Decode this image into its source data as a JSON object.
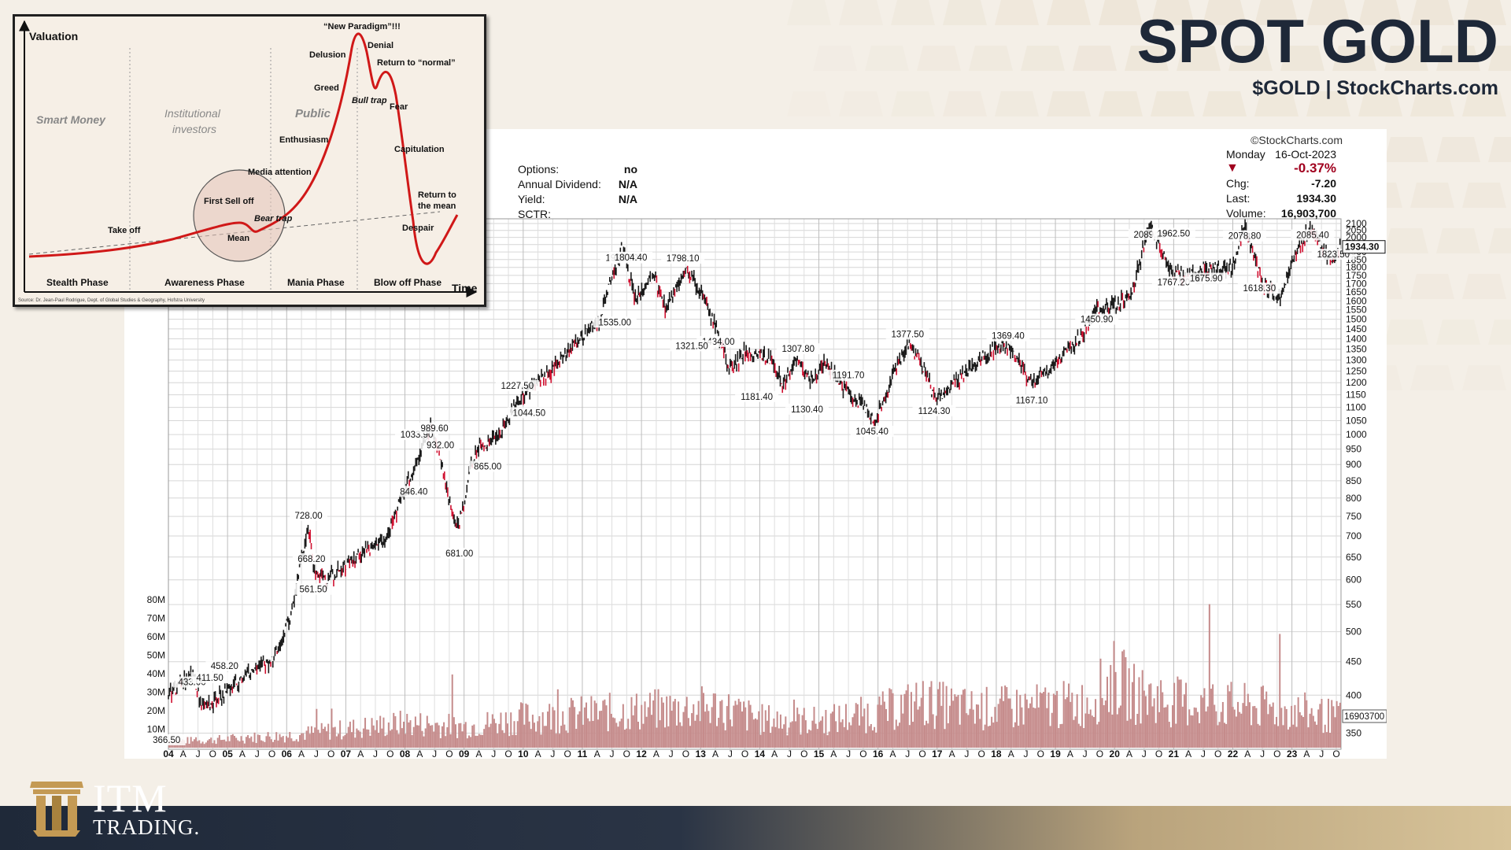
{
  "header": {
    "title": "SPOT GOLD",
    "subtitle": "$GOLD | StockCharts.com"
  },
  "colors": {
    "candle": "#1a1a1a",
    "candle_down": "#d01030",
    "volume": "#c58b8b",
    "accent": "#a0001e",
    "navy": "#1e2838",
    "gold": "#b8975a"
  },
  "chart": {
    "watermark": "©StockCharts.com",
    "info": [
      {
        "label": "Options:",
        "value": "no"
      },
      {
        "label": "Annual Dividend:",
        "value": "N/A"
      },
      {
        "label": "Yield:",
        "value": "N/A"
      },
      {
        "label": "SCTR:",
        "value": ""
      }
    ],
    "quote": {
      "day": "Monday",
      "date": "16-Oct-2023",
      "change_pct": "-0.37%",
      "chg_label": "Chg:",
      "chg": "-7.20",
      "last_label": "Last:",
      "last": "1934.30",
      "volume_label": "Volume:",
      "volume": "16,903,700"
    },
    "last_value_tag": "1934.30",
    "volume_value_tag": "16903700"
  },
  "chart_data": [
    {
      "type": "line",
      "title": "",
      "x_start": 2004,
      "x_end": 2023.83,
      "y_scale": "log",
      "ylim": [
        340,
        2100
      ],
      "x": [
        2004.0,
        2004.4,
        2004.6,
        2005.2,
        2005.8,
        2006.1,
        2006.37,
        2006.45,
        2006.7,
        2007.2,
        2007.7,
        2008.2,
        2008.43,
        2008.8,
        2008.9,
        2009.2,
        2009.6,
        2009.9,
        2010.4,
        2010.95,
        2011.3,
        2011.67,
        2011.9,
        2012.2,
        2012.4,
        2012.75,
        2013.0,
        2013.5,
        2013.75,
        2014.2,
        2014.4,
        2014.6,
        2014.9,
        2015.1,
        2015.4,
        2015.6,
        2015.8,
        2015.95,
        2016.5,
        2016.7,
        2016.98,
        2017.5,
        2017.9,
        2018.2,
        2018.6,
        2019.0,
        2019.4,
        2019.7,
        2020.05,
        2020.3,
        2020.6,
        2020.8,
        2021.0,
        2021.2,
        2021.5,
        2021.8,
        2022.0,
        2022.2,
        2022.5,
        2022.8,
        2023.0,
        2023.35,
        2023.5,
        2023.7,
        2023.8
      ],
      "values": [
        400,
        433,
        380,
        420,
        458,
        540,
        728,
        620,
        600,
        650,
        700,
        900,
        1033.9,
        760,
        720,
        950,
        1000,
        1130,
        1227.5,
        1400,
        1500,
        1923.7,
        1600,
        1750,
        1560,
        1798.1,
        1650,
        1250,
        1340,
        1300,
        1181.4,
        1307.8,
        1200,
        1290,
        1180,
        1130.4,
        1100,
        1045.4,
        1377.5,
        1300,
        1124.3,
        1250,
        1340,
        1369.4,
        1200,
        1280,
        1400,
        1550,
        1580,
        1650,
        2089.2,
        1900,
        1767.2,
        1740,
        1800,
        1780,
        1800,
        2078.8,
        1700,
        1618.3,
        1850,
        2085.4,
        1920,
        1823.5,
        1934.3
      ],
      "y_ticks": [
        350,
        400,
        450,
        500,
        550,
        600,
        650,
        700,
        750,
        800,
        850,
        900,
        950,
        1000,
        1050,
        1100,
        1150,
        1200,
        1250,
        1300,
        1350,
        1400,
        1450,
        1500,
        1550,
        1600,
        1650,
        1700,
        1750,
        1800,
        1850,
        1900,
        1950,
        2000,
        2050,
        2100
      ],
      "x_ticks": [
        {
          "t": 2004.0,
          "label": "04",
          "bold": true
        },
        {
          "t": 2004.25,
          "label": "A"
        },
        {
          "t": 2004.5,
          "label": "J"
        },
        {
          "t": 2004.75,
          "label": "O"
        },
        {
          "t": 2005.0,
          "label": "05",
          "bold": true
        },
        {
          "t": 2005.25,
          "label": "A"
        },
        {
          "t": 2005.5,
          "label": "J"
        },
        {
          "t": 2005.75,
          "label": "O"
        },
        {
          "t": 2006.0,
          "label": "06",
          "bold": true
        },
        {
          "t": 2006.25,
          "label": "A"
        },
        {
          "t": 2006.5,
          "label": "J"
        },
        {
          "t": 2006.75,
          "label": "O"
        },
        {
          "t": 2007.0,
          "label": "07",
          "bold": true
        },
        {
          "t": 2007.25,
          "label": "A"
        },
        {
          "t": 2007.5,
          "label": "J"
        },
        {
          "t": 2007.75,
          "label": "O"
        },
        {
          "t": 2008.0,
          "label": "08",
          "bold": true
        },
        {
          "t": 2008.25,
          "label": "A"
        },
        {
          "t": 2008.5,
          "label": "J"
        },
        {
          "t": 2008.75,
          "label": "O"
        },
        {
          "t": 2009.0,
          "label": "09",
          "bold": true
        },
        {
          "t": 2009.25,
          "label": "A"
        },
        {
          "t": 2009.5,
          "label": "J"
        },
        {
          "t": 2009.75,
          "label": "O"
        },
        {
          "t": 2010.0,
          "label": "10",
          "bold": true
        },
        {
          "t": 2010.25,
          "label": "A"
        },
        {
          "t": 2010.5,
          "label": "J"
        },
        {
          "t": 2010.75,
          "label": "O"
        },
        {
          "t": 2011.0,
          "label": "11",
          "bold": true
        },
        {
          "t": 2011.25,
          "label": "A"
        },
        {
          "t": 2011.5,
          "label": "J"
        },
        {
          "t": 2011.75,
          "label": "O"
        },
        {
          "t": 2012.0,
          "label": "12",
          "bold": true
        },
        {
          "t": 2012.25,
          "label": "A"
        },
        {
          "t": 2012.5,
          "label": "J"
        },
        {
          "t": 2012.75,
          "label": "O"
        },
        {
          "t": 2013.0,
          "label": "13",
          "bold": true
        },
        {
          "t": 2013.25,
          "label": "A"
        },
        {
          "t": 2013.5,
          "label": "J"
        },
        {
          "t": 2013.75,
          "label": "O"
        },
        {
          "t": 2014.0,
          "label": "14",
          "bold": true
        },
        {
          "t": 2014.25,
          "label": "A"
        },
        {
          "t": 2014.5,
          "label": "J"
        },
        {
          "t": 2014.75,
          "label": "O"
        },
        {
          "t": 2015.0,
          "label": "15",
          "bold": true
        },
        {
          "t": 2015.25,
          "label": "A"
        },
        {
          "t": 2015.5,
          "label": "J"
        },
        {
          "t": 2015.75,
          "label": "O"
        },
        {
          "t": 2016.0,
          "label": "16",
          "bold": true
        },
        {
          "t": 2016.25,
          "label": "A"
        },
        {
          "t": 2016.5,
          "label": "J"
        },
        {
          "t": 2016.75,
          "label": "O"
        },
        {
          "t": 2017.0,
          "label": "17",
          "bold": true
        },
        {
          "t": 2017.25,
          "label": "A"
        },
        {
          "t": 2017.5,
          "label": "J"
        },
        {
          "t": 2017.75,
          "label": "O"
        },
        {
          "t": 2018.0,
          "label": "18",
          "bold": true
        },
        {
          "t": 2018.25,
          "label": "A"
        },
        {
          "t": 2018.5,
          "label": "J"
        },
        {
          "t": 2018.75,
          "label": "O"
        },
        {
          "t": 2019.0,
          "label": "19",
          "bold": true
        },
        {
          "t": 2019.25,
          "label": "A"
        },
        {
          "t": 2019.5,
          "label": "J"
        },
        {
          "t": 2019.75,
          "label": "O"
        },
        {
          "t": 2020.0,
          "label": "20",
          "bold": true
        },
        {
          "t": 2020.25,
          "label": "A"
        },
        {
          "t": 2020.5,
          "label": "J"
        },
        {
          "t": 2020.75,
          "label": "O"
        },
        {
          "t": 2021.0,
          "label": "21",
          "bold": true
        },
        {
          "t": 2021.25,
          "label": "A"
        },
        {
          "t": 2021.5,
          "label": "J"
        },
        {
          "t": 2021.75,
          "label": "O"
        },
        {
          "t": 2022.0,
          "label": "22",
          "bold": true
        },
        {
          "t": 2022.25,
          "label": "A"
        },
        {
          "t": 2022.5,
          "label": "J"
        },
        {
          "t": 2022.75,
          "label": "O"
        },
        {
          "t": 2023.0,
          "label": "23",
          "bold": true
        },
        {
          "t": 2023.25,
          "label": "A"
        },
        {
          "t": 2023.5,
          "label": "J"
        },
        {
          "t": 2023.75,
          "label": "O"
        }
      ],
      "annotations": [
        {
          "t": 2003.97,
          "v": 366.5,
          "label": "366.50"
        },
        {
          "t": 2004.4,
          "v": 433,
          "label": "433.00"
        },
        {
          "t": 2004.7,
          "v": 411.5,
          "label": "411.50"
        },
        {
          "t": 2004.95,
          "v": 458.2,
          "label": "458.20"
        },
        {
          "t": 2006.37,
          "v": 728,
          "label": "728.00"
        },
        {
          "t": 2006.42,
          "v": 668.2,
          "label": "668.20"
        },
        {
          "t": 2006.45,
          "v": 561.5,
          "label": "561.50"
        },
        {
          "t": 2008.2,
          "v": 1033.9,
          "label": "1033.90"
        },
        {
          "t": 2008.5,
          "v": 989.6,
          "label": "989.60"
        },
        {
          "t": 2008.15,
          "v": 846.4,
          "label": "846.40"
        },
        {
          "t": 2008.6,
          "v": 932,
          "label": "932.00"
        },
        {
          "t": 2008.92,
          "v": 681,
          "label": "681.00"
        },
        {
          "t": 2009.4,
          "v": 865,
          "label": "865.00"
        },
        {
          "t": 2009.9,
          "v": 1227.5,
          "label": "1227.50"
        },
        {
          "t": 2010.1,
          "v": 1044.5,
          "label": "1044.50"
        },
        {
          "t": 2011.67,
          "v": 1923.7,
          "label": "1923.70"
        },
        {
          "t": 2011.82,
          "v": 1804.4,
          "label": "1804.40"
        },
        {
          "t": 2011.55,
          "v": 1535,
          "label": "1535.00"
        },
        {
          "t": 2012.7,
          "v": 1798.1,
          "label": "1798.10"
        },
        {
          "t": 2013.3,
          "v": 1434,
          "label": "1434.00"
        },
        {
          "t": 2012.85,
          "v": 1321.5,
          "label": "1321.50"
        },
        {
          "t": 2013.95,
          "v": 1181.4,
          "label": "1181.40"
        },
        {
          "t": 2014.65,
          "v": 1307.8,
          "label": "1307.80"
        },
        {
          "t": 2014.8,
          "v": 1130.4,
          "label": "1130.40"
        },
        {
          "t": 2015.5,
          "v": 1191.7,
          "label": "1191.70"
        },
        {
          "t": 2015.9,
          "v": 1045.4,
          "label": "1045.40"
        },
        {
          "t": 2016.5,
          "v": 1377.5,
          "label": "1377.50"
        },
        {
          "t": 2016.95,
          "v": 1124.3,
          "label": "1124.30"
        },
        {
          "t": 2018.2,
          "v": 1369.4,
          "label": "1369.40"
        },
        {
          "t": 2018.6,
          "v": 1167.1,
          "label": "1167.10"
        },
        {
          "t": 2019.7,
          "v": 1450.9,
          "label": "1450.90"
        },
        {
          "t": 2020.6,
          "v": 2089.2,
          "label": "2089.20"
        },
        {
          "t": 2021.0,
          "v": 1962.5,
          "label": "1962.50"
        },
        {
          "t": 2021.0,
          "v": 1767.2,
          "label": "1767.20"
        },
        {
          "t": 2021.55,
          "v": 1675.9,
          "label": "1675.90"
        },
        {
          "t": 2022.2,
          "v": 2078.8,
          "label": "2078.80"
        },
        {
          "t": 2022.45,
          "v": 1618.3,
          "label": "1618.30"
        },
        {
          "t": 2023.35,
          "v": 2085.4,
          "label": "2085.40"
        },
        {
          "t": 2023.7,
          "v": 1823.5,
          "label": "1823.50"
        }
      ]
    },
    {
      "type": "bar",
      "title": "",
      "ylim": [
        0,
        85
      ],
      "y_ticks": [
        {
          "v": 10,
          "label": "10M"
        },
        {
          "v": 20,
          "label": "20M"
        },
        {
          "v": 30,
          "label": "30M"
        },
        {
          "v": 40,
          "label": "40M"
        },
        {
          "v": 50,
          "label": "50M"
        },
        {
          "v": 60,
          "label": "60M"
        },
        {
          "v": 70,
          "label": "70M"
        },
        {
          "v": 80,
          "label": "80M"
        }
      ],
      "x": [
        2004.5,
        2006.0,
        2008.0,
        2009.0,
        2010.0,
        2011.0,
        2012.0,
        2013.3,
        2014.0,
        2015.0,
        2016.0,
        2016.7,
        2017.5,
        2018.5,
        2019.5,
        2020.0,
        2020.3,
        2021.0,
        2022.0,
        2023.0,
        2023.8
      ],
      "values": [
        4,
        7,
        14,
        12,
        17,
        19,
        21,
        23,
        16,
        15,
        20,
        26,
        22,
        23,
        25,
        40,
        31,
        26,
        24,
        21,
        17
      ]
    },
    {
      "type": "line",
      "title": "",
      "xlabel": "Time",
      "ylabel": "Valuation",
      "phases": [
        {
          "label": "Stealth Phase"
        },
        {
          "label": "Awareness Phase"
        },
        {
          "label": "Mania Phase"
        },
        {
          "label": "Blow off Phase"
        }
      ],
      "groups": [
        {
          "label": "Smart Money"
        },
        {
          "label": "Institutional investors"
        },
        {
          "label": "Public"
        }
      ],
      "annotations": [
        "“New Paradigm”!!!",
        "Denial",
        "Delusion",
        "Return to “normal”",
        "Greed",
        "Bull trap",
        "Fear",
        "Enthusiasm",
        "Capitulation",
        "Media attention",
        "First Sell off",
        "Bear trap",
        "Take off",
        "Mean",
        "Return to the mean",
        "Despair"
      ],
      "source": "Source: Dr. Jean-Paul Rodrigue, Dept. of Global Studies & Geography, Hofstra University"
    }
  ]
}
